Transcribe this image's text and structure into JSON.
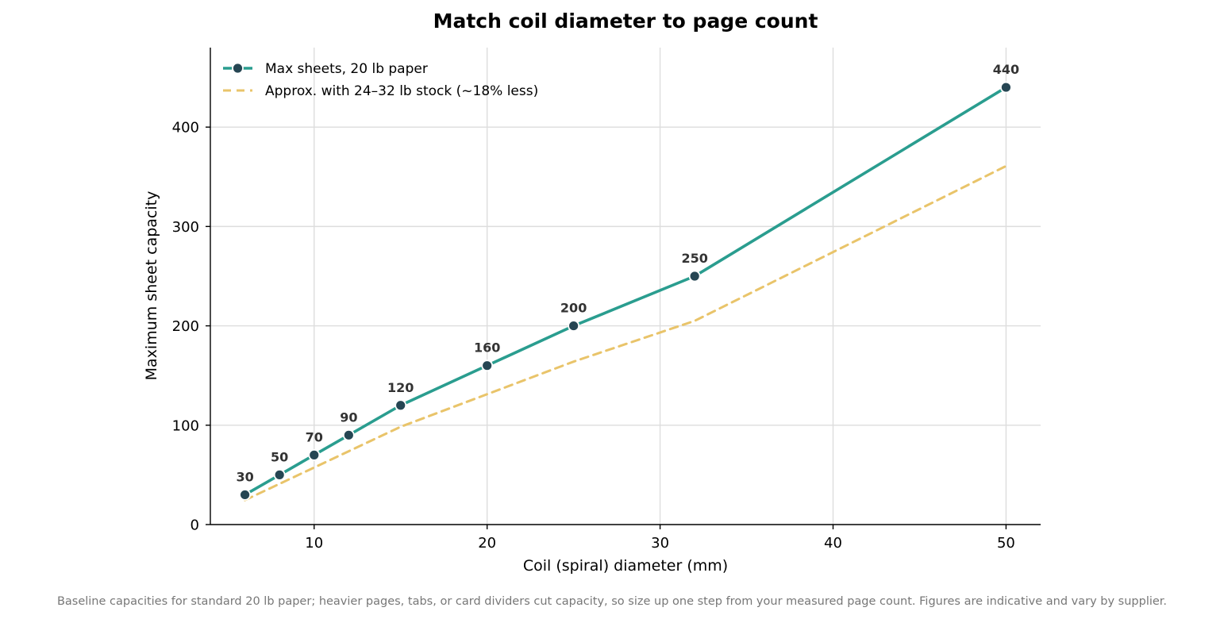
{
  "chart_data": {
    "type": "line",
    "title": "Match coil diameter to page count",
    "xlabel": "Coil (spiral) diameter (mm)",
    "ylabel": "Maximum sheet capacity",
    "xlim": [
      4,
      52
    ],
    "ylim": [
      0,
      480
    ],
    "xticks": [
      10,
      20,
      30,
      40,
      50
    ],
    "yticks": [
      0,
      100,
      200,
      300,
      400
    ],
    "grid": true,
    "legend_position": "top-left",
    "x": [
      6,
      8,
      10,
      12,
      15,
      20,
      25,
      32,
      50
    ],
    "series": [
      {
        "name": "Max sheets, 20 lb paper",
        "values": [
          30,
          50,
          70,
          90,
          120,
          160,
          200,
          250,
          440
        ],
        "data_labels": [
          "30",
          "50",
          "70",
          "90",
          "120",
          "160",
          "200",
          "250",
          "440"
        ],
        "color": "#2a9d8f",
        "marker_color": "#264653",
        "style": "solid"
      },
      {
        "name": "Approx. with 24–32 lb stock (~18% less)",
        "values": [
          24.6,
          41,
          57.4,
          73.8,
          98.4,
          131.2,
          164,
          205,
          360.8
        ],
        "color": "#e9c46a",
        "style": "dashed"
      }
    ],
    "footnote": "Baseline capacities for standard 20 lb paper; heavier pages, tabs, or card dividers cut capacity, so size up one step from your measured page count. Figures are indicative and vary by supplier."
  }
}
